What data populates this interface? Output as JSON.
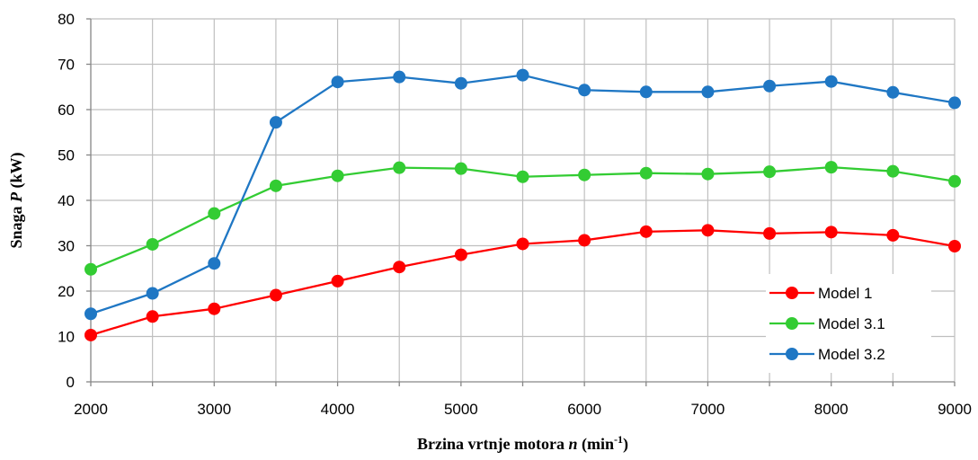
{
  "chart_data": {
    "type": "line",
    "title": "",
    "xlabel": {
      "prefix": "Brzina vrtnje motora ",
      "var": "n",
      "unit_open": " (min",
      "unit_sup": "-1",
      "unit_close": ")"
    },
    "ylabel": {
      "prefix": "Snaga ",
      "var": "P",
      "unit": " (kW)"
    },
    "xlim": [
      2000,
      9000
    ],
    "ylim": [
      0,
      80
    ],
    "x_ticks": [
      2000,
      3000,
      4000,
      5000,
      6000,
      7000,
      8000,
      9000
    ],
    "y_ticks": [
      0,
      10,
      20,
      30,
      40,
      50,
      60,
      70,
      80
    ],
    "grid": true,
    "legend_position": "bottom-right",
    "x": [
      2000,
      2500,
      3000,
      3500,
      4000,
      4500,
      5000,
      5500,
      6000,
      6500,
      7000,
      7500,
      8000,
      8500,
      9000
    ],
    "series": [
      {
        "name": "Model 1",
        "color": "#ff0000",
        "values": [
          10.3,
          14.4,
          16.1,
          19.1,
          22.2,
          25.3,
          28.0,
          30.4,
          31.2,
          33.1,
          33.4,
          32.7,
          33.0,
          32.3,
          29.9
        ]
      },
      {
        "name": "Model 3.1",
        "color": "#33cc33",
        "values": [
          24.8,
          30.3,
          37.1,
          43.2,
          45.4,
          47.2,
          47.0,
          45.2,
          45.6,
          46.0,
          45.8,
          46.3,
          47.3,
          46.4,
          44.2
        ]
      },
      {
        "name": "Model 3.2",
        "color": "#1f77c4",
        "values": [
          15.0,
          19.5,
          26.1,
          57.2,
          66.1,
          67.2,
          65.8,
          67.6,
          64.3,
          63.9,
          63.9,
          65.2,
          66.2,
          63.8,
          61.5
        ]
      }
    ],
    "colors": {
      "grid": "#bfbfbf",
      "axis": "#868686"
    }
  }
}
